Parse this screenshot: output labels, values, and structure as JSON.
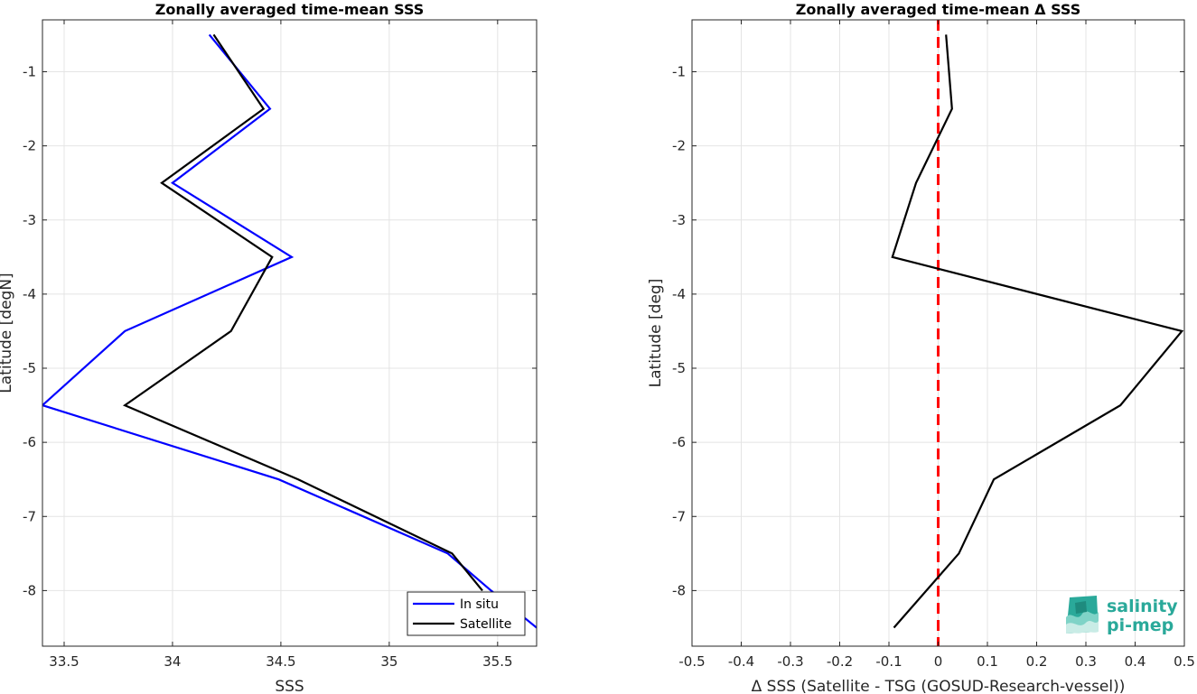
{
  "chart_data": [
    {
      "type": "line",
      "title": "Zonally averaged time-mean SSS",
      "xlabel": "SSS",
      "ylabel": "Latitude [degN]",
      "xlim": [
        33.4,
        35.68
      ],
      "ylim": [
        -8.75,
        -0.3
      ],
      "xticks": [
        33.5,
        34,
        34.5,
        35,
        35.5
      ],
      "xtick_labels": [
        "33.5",
        "34",
        "34.5",
        "35",
        "35.5"
      ],
      "yticks": [
        -1,
        -2,
        -3,
        -4,
        -5,
        -6,
        -7,
        -8
      ],
      "ytick_labels": [
        "-1",
        "-2",
        "-3",
        "-4",
        "-5",
        "-6",
        "-7",
        "-8"
      ],
      "grid": true,
      "legend_position": "bottom-right",
      "series": [
        {
          "name": "In situ",
          "color": "#0000ff",
          "x": [
            34.17,
            34.45,
            34.0,
            34.55,
            33.78,
            33.4,
            34.49,
            35.27,
            35.47,
            35.68
          ],
          "y": [
            -0.5,
            -1.5,
            -2.5,
            -3.5,
            -4.5,
            -5.5,
            -6.5,
            -7.5,
            -8.0,
            -8.5
          ]
        },
        {
          "name": "Satellite",
          "color": "#000000",
          "x": [
            34.19,
            34.42,
            33.95,
            34.46,
            34.27,
            33.78,
            34.58,
            35.29,
            35.43
          ],
          "y": [
            -0.5,
            -1.5,
            -2.5,
            -3.5,
            -4.5,
            -5.5,
            -6.5,
            -7.5,
            -8.0
          ]
        }
      ]
    },
    {
      "type": "line",
      "title": "Zonally averaged time-mean Δ SSS",
      "xlabel": "Δ SSS (Satellite - TSG (GOSUD-Research-vessel))",
      "ylabel": "Latitude [deg]",
      "xlim": [
        -0.5,
        0.5
      ],
      "ylim": [
        -8.75,
        -0.3
      ],
      "xticks": [
        -0.5,
        -0.4,
        -0.3,
        -0.2,
        -0.1,
        0,
        0.1,
        0.2,
        0.3,
        0.4,
        0.5
      ],
      "xtick_labels": [
        "-0.5",
        "-0.4",
        "-0.3",
        "-0.2",
        "-0.1",
        "0",
        "0.1",
        "0.2",
        "0.3",
        "0.4",
        "0.5"
      ],
      "yticks": [
        -1,
        -2,
        -3,
        -4,
        -5,
        -6,
        -7,
        -8
      ],
      "ytick_labels": [
        "-1",
        "-2",
        "-3",
        "-4",
        "-5",
        "-6",
        "-7",
        "-8"
      ],
      "grid": true,
      "reference_line": {
        "x": 0,
        "color": "#ff0000",
        "style": "dashed"
      },
      "series": [
        {
          "color": "#000000",
          "x": [
            0.016,
            0.028,
            -0.045,
            -0.093,
            0.495,
            0.37,
            0.113,
            0.042,
            -0.09
          ],
          "y": [
            -0.5,
            -1.5,
            -2.5,
            -3.5,
            -4.5,
            -5.5,
            -6.5,
            -7.5,
            -8.5
          ]
        }
      ]
    }
  ],
  "logo": {
    "line1": "salinity",
    "line2": "pi-mep",
    "color": "#2aa99a"
  }
}
